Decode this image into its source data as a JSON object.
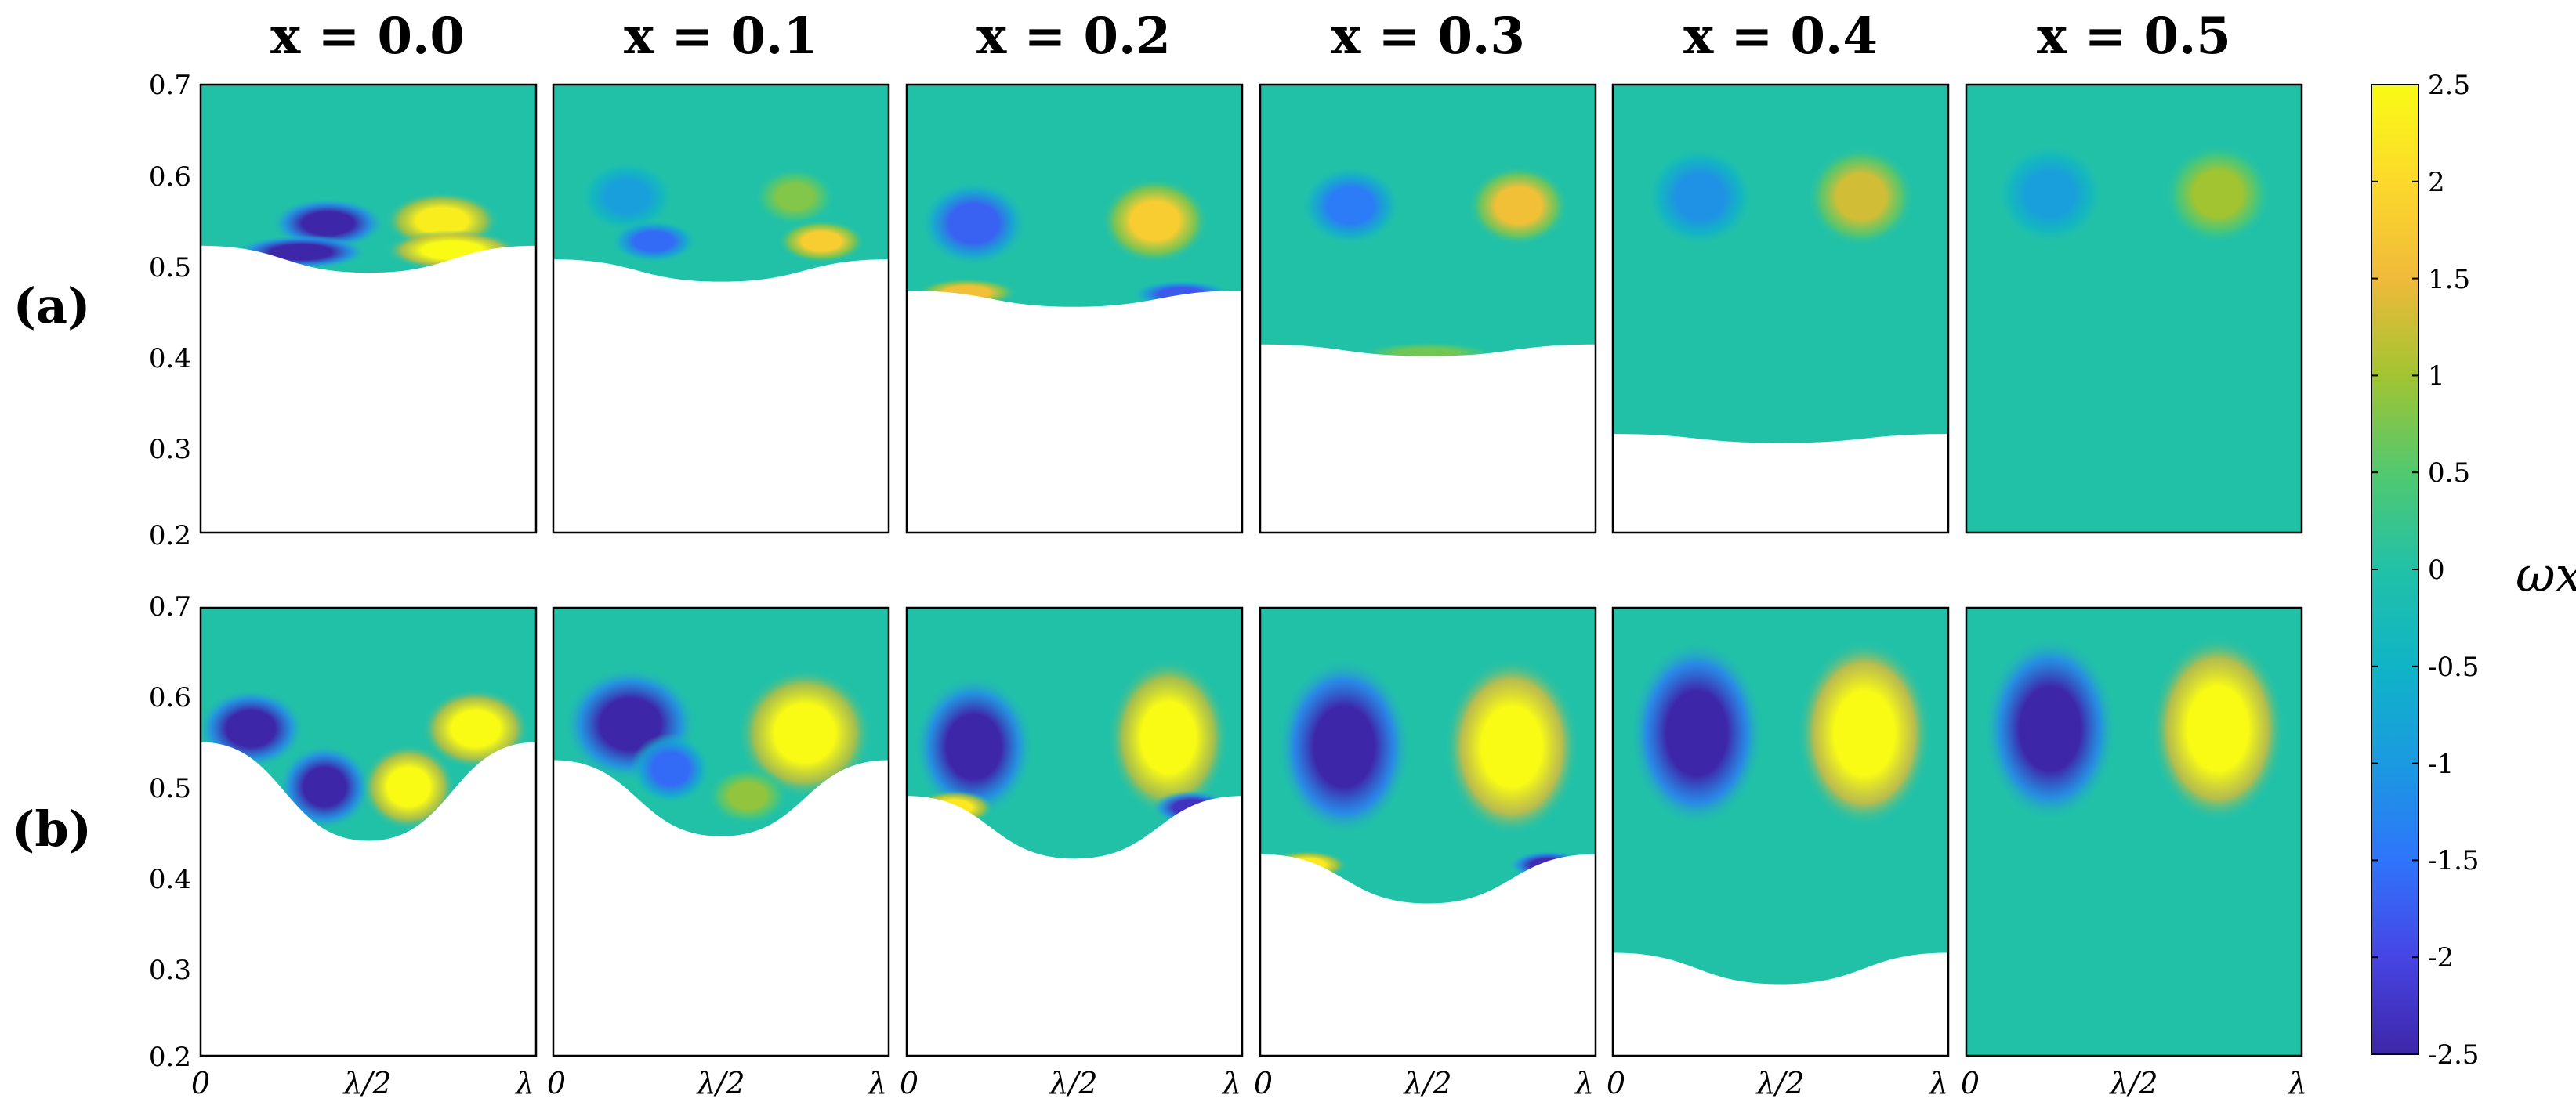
{
  "chart_data": {
    "type": "heatmap",
    "row_labels": [
      "(a)",
      "(b)"
    ],
    "column_titles": [
      "x = 0.0",
      "x = 0.1",
      "x = 0.2",
      "x = 0.3",
      "x = 0.4",
      "x = 0.5"
    ],
    "y_ticks": [
      "0.7",
      "0.6",
      "0.5",
      "0.4",
      "0.3",
      "0.2"
    ],
    "ylim": [
      0.2,
      0.7
    ],
    "x_ticks": [
      "0",
      "λ/2",
      "λ"
    ],
    "colorbar": {
      "label": "ωx",
      "range": [
        -2.5,
        2.5
      ],
      "ticks": [
        "2.5",
        "2",
        "1.5",
        "1",
        "0.5",
        "0",
        "-0.5",
        "-1",
        "-1.5",
        "-2",
        "-2.5"
      ]
    },
    "colormap": [
      "#3e26a8",
      "#4745e4",
      "#2f74fb",
      "#1b9ae0",
      "#0fb4c6",
      "#21c1a8",
      "#52c86f",
      "#a2c431",
      "#f0ba3a",
      "#fcd92b",
      "#f9fb15"
    ],
    "panels": [
      {
        "row": "a",
        "x": 0.0,
        "bed_edge": 0.52,
        "bed_mid": 0.49,
        "vortices": [
          {
            "xc": 0.38,
            "y": 0.545,
            "value": -2.5,
            "rx": 0.17,
            "ry": 0.018
          },
          {
            "xc": 0.72,
            "y": 0.548,
            "value": 2.3,
            "rx": 0.17,
            "ry": 0.02
          },
          {
            "xc": 0.3,
            "y": 0.513,
            "value": -2.5,
            "rx": 0.2,
            "ry": 0.012
          },
          {
            "xc": 0.75,
            "y": 0.515,
            "value": 2.5,
            "rx": 0.2,
            "ry": 0.014
          }
        ]
      },
      {
        "row": "a",
        "x": 0.1,
        "bed_edge": 0.505,
        "bed_mid": 0.48,
        "vortices": [
          {
            "xc": 0.22,
            "y": 0.575,
            "value": -0.9,
            "rx": 0.14,
            "ry": 0.025
          },
          {
            "xc": 0.3,
            "y": 0.525,
            "value": -1.6,
            "rx": 0.13,
            "ry": 0.015
          },
          {
            "xc": 0.8,
            "y": 0.525,
            "value": 1.8,
            "rx": 0.13,
            "ry": 0.015
          },
          {
            "xc": 0.72,
            "y": 0.575,
            "value": 0.8,
            "rx": 0.12,
            "ry": 0.02
          }
        ]
      },
      {
        "row": "a",
        "x": 0.2,
        "bed_edge": 0.47,
        "bed_mid": 0.452,
        "vortices": [
          {
            "xc": 0.2,
            "y": 0.545,
            "value": -1.7,
            "rx": 0.16,
            "ry": 0.03
          },
          {
            "xc": 0.74,
            "y": 0.548,
            "value": 1.8,
            "rx": 0.16,
            "ry": 0.03
          },
          {
            "xc": 0.18,
            "y": 0.468,
            "value": 1.6,
            "rx": 0.15,
            "ry": 0.01
          },
          {
            "xc": 0.82,
            "y": 0.466,
            "value": -1.8,
            "rx": 0.15,
            "ry": 0.01
          }
        ]
      },
      {
        "row": "a",
        "x": 0.3,
        "bed_edge": 0.41,
        "bed_mid": 0.397,
        "vortices": [
          {
            "xc": 0.27,
            "y": 0.565,
            "value": -1.4,
            "rx": 0.15,
            "ry": 0.028
          },
          {
            "xc": 0.77,
            "y": 0.565,
            "value": 1.6,
            "rx": 0.15,
            "ry": 0.028
          },
          {
            "xc": 0.5,
            "y": 0.4,
            "value": 0.7,
            "rx": 0.2,
            "ry": 0.008
          }
        ]
      },
      {
        "row": "a",
        "x": 0.4,
        "bed_edge": 0.31,
        "bed_mid": 0.3,
        "vortices": [
          {
            "xc": 0.26,
            "y": 0.575,
            "value": -1.1,
            "rx": 0.16,
            "ry": 0.035
          },
          {
            "xc": 0.74,
            "y": 0.575,
            "value": 1.3,
            "rx": 0.16,
            "ry": 0.035
          }
        ]
      },
      {
        "row": "a",
        "x": 0.5,
        "bed_edge": 0.2,
        "bed_mid": 0.2,
        "vortices": [
          {
            "xc": 0.25,
            "y": 0.578,
            "value": -0.9,
            "rx": 0.16,
            "ry": 0.035
          },
          {
            "xc": 0.75,
            "y": 0.578,
            "value": 1.0,
            "rx": 0.16,
            "ry": 0.035
          }
        ]
      },
      {
        "row": "b",
        "x": 0.0,
        "bed_edge": 0.55,
        "bed_mid": 0.44,
        "vortices": [
          {
            "xc": 0.15,
            "y": 0.565,
            "value": -2.5,
            "rx": 0.16,
            "ry": 0.028
          },
          {
            "xc": 0.37,
            "y": 0.5,
            "value": -2.5,
            "rx": 0.14,
            "ry": 0.03
          },
          {
            "xc": 0.82,
            "y": 0.565,
            "value": 2.5,
            "rx": 0.16,
            "ry": 0.028
          },
          {
            "xc": 0.62,
            "y": 0.5,
            "value": 2.5,
            "rx": 0.14,
            "ry": 0.03
          }
        ]
      },
      {
        "row": "b",
        "x": 0.1,
        "bed_edge": 0.53,
        "bed_mid": 0.445,
        "vortices": [
          {
            "xc": 0.23,
            "y": 0.57,
            "value": -2.5,
            "rx": 0.2,
            "ry": 0.04
          },
          {
            "xc": 0.35,
            "y": 0.52,
            "value": -1.6,
            "rx": 0.12,
            "ry": 0.025
          },
          {
            "xc": 0.75,
            "y": 0.56,
            "value": 2.5,
            "rx": 0.2,
            "ry": 0.045
          },
          {
            "xc": 0.58,
            "y": 0.49,
            "value": 0.9,
            "rx": 0.12,
            "ry": 0.02
          }
        ]
      },
      {
        "row": "b",
        "x": 0.2,
        "bed_edge": 0.49,
        "bed_mid": 0.42,
        "vortices": [
          {
            "xc": 0.2,
            "y": 0.545,
            "value": -2.5,
            "rx": 0.18,
            "ry": 0.05
          },
          {
            "xc": 0.78,
            "y": 0.555,
            "value": 2.5,
            "rx": 0.18,
            "ry": 0.055
          },
          {
            "xc": 0.14,
            "y": 0.477,
            "value": 2.2,
            "rx": 0.12,
            "ry": 0.012
          },
          {
            "xc": 0.85,
            "y": 0.477,
            "value": -2.3,
            "rx": 0.12,
            "ry": 0.012
          }
        ]
      },
      {
        "row": "b",
        "x": 0.3,
        "bed_edge": 0.425,
        "bed_mid": 0.37,
        "vortices": [
          {
            "xc": 0.25,
            "y": 0.545,
            "value": -2.8,
            "rx": 0.2,
            "ry": 0.062
          },
          {
            "xc": 0.75,
            "y": 0.545,
            "value": 2.8,
            "rx": 0.2,
            "ry": 0.062
          },
          {
            "xc": 0.14,
            "y": 0.413,
            "value": 2.2,
            "rx": 0.12,
            "ry": 0.01
          },
          {
            "xc": 0.86,
            "y": 0.413,
            "value": -2.4,
            "rx": 0.12,
            "ry": 0.01
          }
        ]
      },
      {
        "row": "b",
        "x": 0.4,
        "bed_edge": 0.315,
        "bed_mid": 0.28,
        "vortices": [
          {
            "xc": 0.25,
            "y": 0.56,
            "value": -2.8,
            "rx": 0.2,
            "ry": 0.065
          },
          {
            "xc": 0.75,
            "y": 0.56,
            "value": 2.8,
            "rx": 0.2,
            "ry": 0.065
          }
        ]
      },
      {
        "row": "b",
        "x": 0.5,
        "bed_edge": 0.2,
        "bed_mid": 0.2,
        "vortices": [
          {
            "xc": 0.25,
            "y": 0.565,
            "value": -2.6,
            "rx": 0.2,
            "ry": 0.065
          },
          {
            "xc": 0.75,
            "y": 0.565,
            "value": 2.7,
            "rx": 0.2,
            "ry": 0.065
          }
        ]
      }
    ]
  }
}
